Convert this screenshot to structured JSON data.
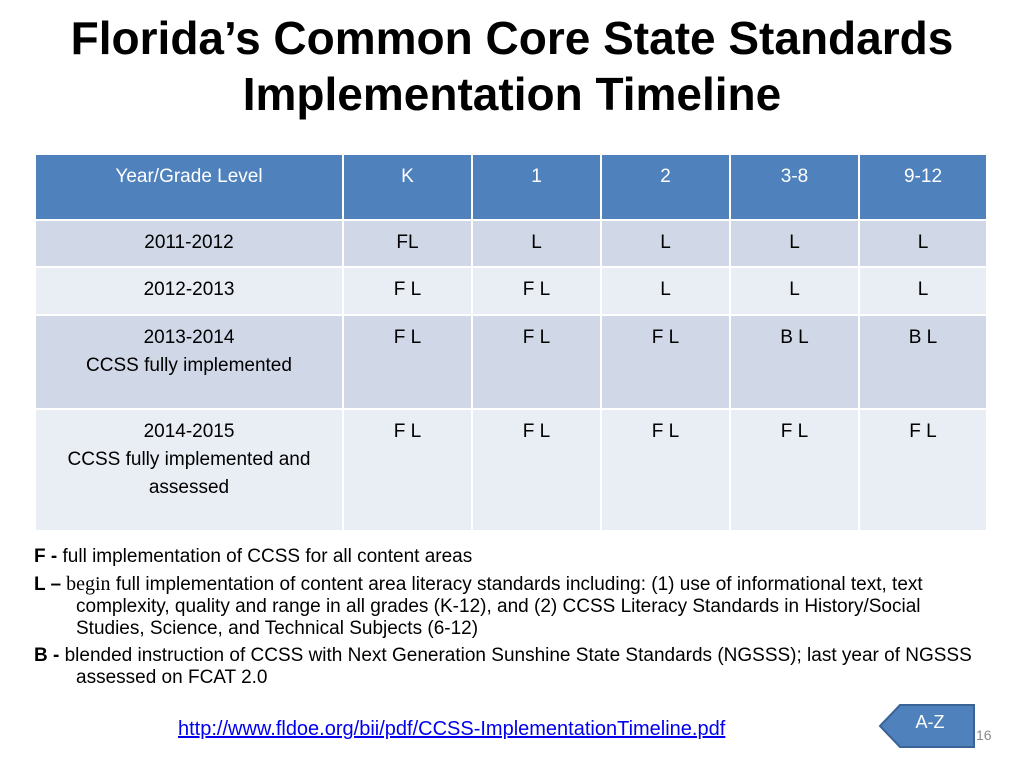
{
  "title_line1": "Florida’s Common Core State Standards",
  "title_line2": "Implementation Timeline",
  "table": {
    "headers": [
      "Year/Grade Level",
      "K",
      "1",
      "2",
      "3-8",
      "9-12"
    ],
    "rows": [
      {
        "year": "2011-2012",
        "note": "",
        "cells": [
          "FL",
          "L",
          "L",
          "L",
          "L"
        ]
      },
      {
        "year": "2012-2013",
        "note": "",
        "cells": [
          "F L",
          "F L",
          "L",
          "L",
          "L"
        ]
      },
      {
        "year": "2013-2014",
        "note": "CCSS fully implemented",
        "cells": [
          "F L",
          "F L",
          "F L",
          "B L",
          "B L"
        ]
      },
      {
        "year": "2014-2015",
        "note": "CCSS fully implemented and assessed",
        "cells": [
          "F L",
          "F L",
          "F L",
          "F L",
          "F L"
        ]
      }
    ]
  },
  "legend": {
    "f_key": "F -",
    "f_text": " full implementation of CCSS for all content areas",
    "l_key": "L –",
    "l_word": " begin",
    "l_text": " full implementation of content area literacy standards including:  (1) use of informational text, text complexity, quality and range in all grades (K-12), and (2) CCSS Literacy Standards in History/Social Studies, Science, and Technical Subjects (6-12)",
    "b_key": "B -",
    "b_text": " blended instruction of CCSS with Next Generation Sunshine State Standards (NGSSS); last year of NGSSS assessed on FCAT 2.0"
  },
  "link_text": "http://www.fldoe.org/bii/pdf/CCSS-ImplementationTimeline.pdf",
  "az_button": "A-Z",
  "page_number": "16",
  "colors": {
    "header": "#4f81bd",
    "row_dark": "#d0d8e8",
    "row_light": "#e9edf4",
    "button": "#4f81bd"
  }
}
